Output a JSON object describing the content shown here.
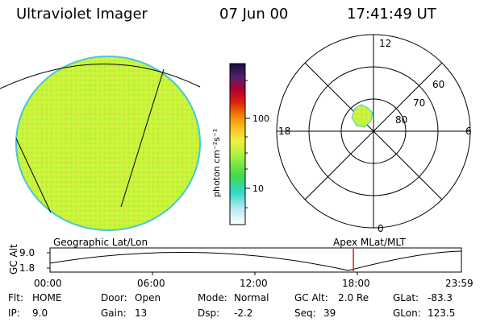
{
  "header": {
    "title": "Ultraviolet Imager",
    "date": "07 Jun 00",
    "time": "17:41:49 UT"
  },
  "colorbar": {
    "unit_label": "photon cm⁻²s⁻¹",
    "ticks": [
      "100",
      "10"
    ]
  },
  "polar": {
    "mlt_labels": {
      "top": "12",
      "left": "18",
      "right": "6",
      "bottom": "0"
    },
    "lat_labels": [
      "60",
      "70",
      "80"
    ]
  },
  "altitude_plot": {
    "left_title": "Geographic Lat/Lon",
    "right_title": "Apex MLat/MLT",
    "y_axis_label": "GC Alt",
    "y_ticks": [
      "9.0",
      "1.8"
    ],
    "x_ticks": [
      "00:00",
      "06:00",
      "12:00",
      "18:00",
      "23:59"
    ],
    "current_time_hours": 17.7
  },
  "status": {
    "flt_label": "Flt:",
    "flt_value": "HOME",
    "ip_label": "IP:",
    "ip_value": "9.0",
    "door_label": "Door:",
    "door_value": "Open",
    "gain_label": "Gain:",
    "gain_value": "13",
    "mode_label": "Mode:",
    "mode_value": "Normal",
    "dsp_label": "Dsp:",
    "dsp_value": "-2.2",
    "gcalt_label": "GC Alt:",
    "gcalt_value": "2.0 Re",
    "seq_label": "Seq:",
    "seq_value": "39",
    "glat_label": "GLat:",
    "glat_value": "-83.3",
    "glon_label": "GLon:",
    "glon_value": "123.5"
  },
  "colors": {
    "image_fill": "#c6f53a",
    "image_speckle": "#e8e84a",
    "image_edge": "#44c8d8",
    "marker": "#e02000"
  }
}
